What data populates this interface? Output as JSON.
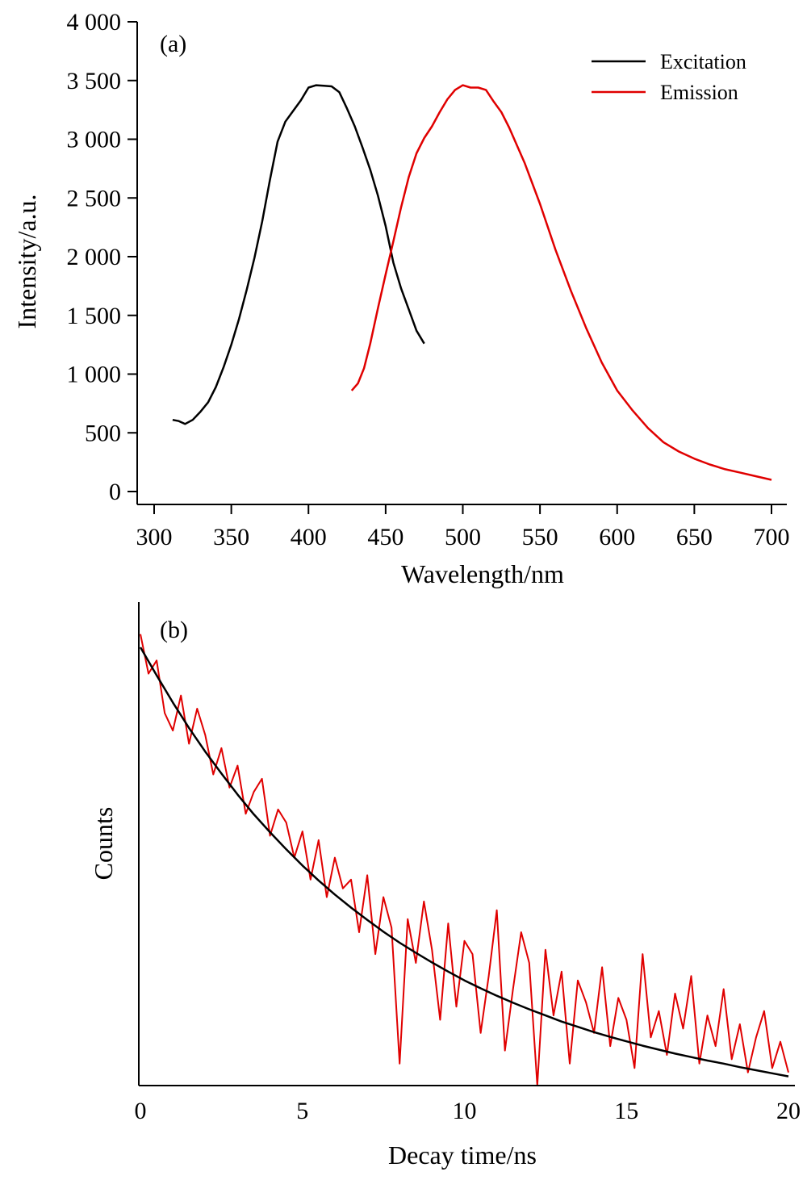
{
  "chart_data": [
    {
      "panel": "(a)",
      "type": "line",
      "xlabel": "Wavelength/nm",
      "ylabel": "Intensity/a.u.",
      "xlim": [
        290,
        710
      ],
      "ylim": [
        -100,
        4000
      ],
      "x_ticks": [
        300,
        350,
        400,
        450,
        500,
        550,
        600,
        650,
        700
      ],
      "x_tick_labels": [
        "300",
        "350",
        "400",
        "450",
        "500",
        "550",
        "600",
        "650",
        "700"
      ],
      "y_ticks": [
        0,
        500,
        1000,
        1500,
        2000,
        2500,
        3000,
        3500,
        4000
      ],
      "y_tick_labels": [
        "0",
        "500",
        "1 000",
        "1 500",
        "2 000",
        "2 500",
        "3 000",
        "3 500",
        "4 000"
      ],
      "legend_position": "top-right",
      "grid": false,
      "series": [
        {
          "name": "Excitation",
          "color": "#000000",
          "x": [
            312,
            316,
            320,
            325,
            330,
            335,
            340,
            345,
            350,
            355,
            360,
            365,
            370,
            375,
            380,
            385,
            390,
            395,
            400,
            405,
            410,
            415,
            420,
            425,
            430,
            435,
            440,
            445,
            450,
            455,
            460,
            465,
            470,
            475
          ],
          "y": [
            610,
            600,
            575,
            610,
            680,
            760,
            890,
            1060,
            1250,
            1470,
            1720,
            1990,
            2300,
            2650,
            2980,
            3150,
            3240,
            3330,
            3440,
            3460,
            3455,
            3450,
            3400,
            3260,
            3110,
            2930,
            2740,
            2520,
            2260,
            1950,
            1730,
            1550,
            1370,
            1260
          ]
        },
        {
          "name": "Emission",
          "color": "#e00000",
          "x": [
            428,
            432,
            436,
            440,
            445,
            450,
            455,
            460,
            465,
            470,
            475,
            480,
            485,
            490,
            495,
            500,
            505,
            510,
            515,
            520,
            525,
            530,
            540,
            550,
            560,
            570,
            580,
            590,
            600,
            610,
            620,
            630,
            640,
            650,
            660,
            670,
            680,
            690,
            700
          ],
          "y": [
            860,
            920,
            1050,
            1260,
            1560,
            1850,
            2130,
            2420,
            2680,
            2880,
            3010,
            3110,
            3230,
            3340,
            3420,
            3460,
            3440,
            3440,
            3420,
            3320,
            3230,
            3100,
            2800,
            2450,
            2060,
            1710,
            1390,
            1100,
            860,
            690,
            540,
            420,
            340,
            280,
            230,
            190,
            160,
            130,
            100
          ]
        }
      ]
    },
    {
      "panel": "(b)",
      "type": "line",
      "xlabel": "Decay time/ns",
      "ylabel": "Counts",
      "xlim": [
        0,
        20
      ],
      "ylim": [
        0,
        100
      ],
      "x_ticks": [
        0,
        5,
        10,
        15,
        20
      ],
      "x_tick_labels": [
        "0",
        "5",
        "10",
        "15",
        "20"
      ],
      "y_ticks": [],
      "grid": false,
      "series": [
        {
          "name": "",
          "color": "#e00000",
          "x": [
            0,
            0.25,
            0.5,
            0.75,
            1,
            1.25,
            1.5,
            1.75,
            2,
            2.25,
            2.5,
            2.75,
            3,
            3.25,
            3.5,
            3.75,
            4,
            4.25,
            4.5,
            4.75,
            5,
            5.25,
            5.5,
            5.75,
            6,
            6.25,
            6.5,
            6.75,
            7,
            7.25,
            7.5,
            7.75,
            8,
            8.25,
            8.5,
            8.75,
            9,
            9.25,
            9.5,
            9.75,
            10,
            10.25,
            10.5,
            10.75,
            11,
            11.25,
            11.5,
            11.75,
            12,
            12.25,
            12.5,
            12.75,
            13,
            13.25,
            13.5,
            13.75,
            14,
            14.25,
            14.5,
            14.75,
            15,
            15.25,
            15.5,
            15.75,
            16,
            16.25,
            16.5,
            16.75,
            17,
            17.25,
            17.5,
            17.75,
            18,
            18.25,
            18.5,
            18.75,
            19,
            19.25,
            19.5,
            19.75,
            20
          ],
          "y": [
            103,
            94,
            97,
            85,
            81,
            89,
            78,
            86,
            80,
            71,
            77,
            68,
            73,
            62,
            67,
            70,
            57,
            63,
            60,
            52,
            58,
            47,
            56,
            43,
            52,
            45,
            47,
            35,
            48,
            30,
            43,
            36,
            5,
            38,
            28,
            42,
            31,
            15,
            37,
            18,
            33,
            30,
            12,
            25,
            40,
            8,
            22,
            35,
            28,
            0,
            31,
            16,
            26,
            5,
            24,
            19,
            12,
            27,
            9,
            20,
            15,
            4,
            30,
            11,
            17,
            7,
            21,
            13,
            25,
            5,
            16,
            9,
            22,
            6,
            14,
            3,
            11,
            17,
            4,
            10,
            3
          ]
        },
        {
          "name": "",
          "color": "#000000",
          "x": [
            0,
            0.5,
            1,
            1.5,
            2,
            2.5,
            3,
            3.5,
            4,
            4.5,
            5,
            5.5,
            6,
            6.5,
            7,
            7.5,
            8,
            8.5,
            9,
            9.5,
            10,
            10.5,
            11,
            11.5,
            12,
            12.5,
            13,
            13.5,
            14,
            14.5,
            15,
            15.5,
            16,
            16.5,
            17,
            17.5,
            18,
            18.5,
            19,
            19.5,
            20
          ],
          "y": [
            100,
            93.6,
            87.4,
            81.6,
            76.2,
            71.2,
            66.4,
            61.9,
            57.8,
            53.9,
            50.2,
            46.8,
            43.6,
            40.6,
            37.8,
            35.1,
            32.6,
            30.3,
            28.1,
            26.0,
            24.0,
            22.2,
            20.5,
            18.9,
            17.4,
            16.0,
            14.6,
            13.4,
            12.2,
            11.1,
            10.1,
            9.1,
            8.2,
            7.3,
            6.5,
            5.7,
            5.0,
            4.2,
            3.5,
            2.8,
            2.1
          ]
        }
      ]
    }
  ]
}
